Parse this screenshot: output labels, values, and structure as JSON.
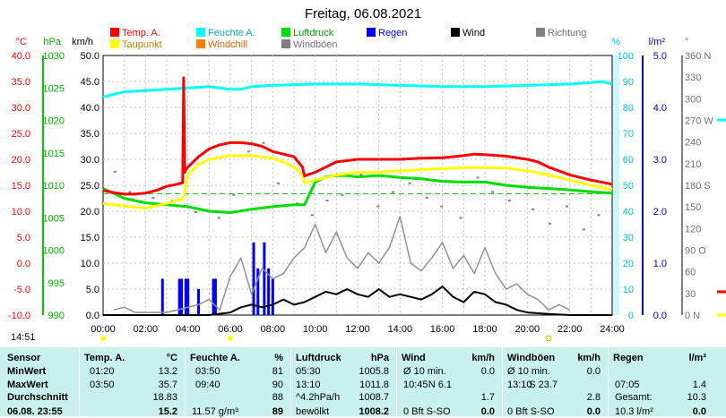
{
  "title": "Freitag, 06.08.2021",
  "axis_units": {
    "temp": "°C",
    "hpa": "hPa",
    "kmh": "km/h",
    "pct": "%",
    "rain": "l/m²",
    "dir": "°"
  },
  "legend": [
    {
      "label": "Temp. A.",
      "color": "#ff0000"
    },
    {
      "label": "Feuchte A.",
      "color": "#00ffff"
    },
    {
      "label": "Luftdruck",
      "color": "#00dd00"
    },
    {
      "label": "Regen",
      "color": "#0000ff"
    },
    {
      "label": "Wind",
      "color": "#000000"
    },
    {
      "label": "Richtung",
      "color": "#808080"
    },
    {
      "label": "Taupunkt",
      "color": "#ffff00"
    },
    {
      "label": "Windchill",
      "color": "#ff8000"
    },
    {
      "label": "Windböen",
      "color": "#808080"
    }
  ],
  "current_time": "14:51",
  "chart_data": {
    "type": "line",
    "x_ticks": [
      "00:00",
      "02:00",
      "04:00",
      "06:00",
      "08:00",
      "10:00",
      "12:00",
      "14:00",
      "16:00",
      "18:00",
      "20:00",
      "22:00",
      "24:00"
    ],
    "axes": {
      "temp": {
        "range": [
          -10,
          40
        ],
        "ticks": [
          "40.0",
          "35.0",
          "30.0",
          "25.0",
          "20.0",
          "15.0",
          "10.0",
          "5.0",
          "0.0",
          "-5.0",
          "-10.0"
        ]
      },
      "hpa": {
        "range": [
          990,
          1030
        ],
        "ticks": [
          "1030",
          "1025",
          "1020",
          "1015",
          "1010",
          "1005",
          "1000",
          "995",
          "990"
        ]
      },
      "kmh": {
        "range": [
          0,
          50
        ],
        "ticks": [
          "50.0",
          "45.0",
          "40.0",
          "35.0",
          "30.0",
          "25.0",
          "20.0",
          "15.0",
          "10.0",
          "5.0",
          "0.0"
        ]
      },
      "pct": {
        "range": [
          0,
          100
        ],
        "ticks": [
          "100",
          "90",
          "80",
          "70",
          "60",
          "50",
          "40",
          "30",
          "20",
          "10",
          "0"
        ]
      },
      "rain": {
        "range": [
          0,
          5
        ],
        "ticks": [
          "5.0",
          "4.0",
          "3.0",
          "2.0",
          "1.0",
          "0.0"
        ]
      },
      "dir": {
        "range": [
          0,
          360
        ],
        "ticks": [
          "360 N",
          "330",
          "300",
          "270 W",
          "240",
          "210",
          "180 S",
          "150",
          "120",
          "90 O",
          "60",
          "30",
          "0 N"
        ]
      }
    },
    "series": [
      {
        "name": "Temp. A.",
        "axis": "temp",
        "color": "#ff0000",
        "x": [
          0,
          0.5,
          1,
          1.5,
          2,
          2.5,
          3,
          3.5,
          3.75,
          3.8,
          3.85,
          3.9,
          4,
          4.5,
          5,
          5.5,
          6,
          6.5,
          7,
          7.5,
          8,
          8.5,
          9,
          9.4,
          9.5,
          10,
          10.5,
          11,
          12,
          13,
          14,
          15,
          16,
          17,
          17.5,
          18,
          19,
          20,
          20.5,
          21,
          22,
          23,
          24
        ],
        "y": [
          14,
          13.6,
          13.3,
          13.3,
          13.5,
          14,
          14.8,
          15.2,
          15.5,
          35.7,
          17.5,
          18,
          18.5,
          20.5,
          22,
          22.8,
          23.2,
          23.2,
          23,
          22.5,
          21.5,
          21,
          20.5,
          18.5,
          16.8,
          17.5,
          18.5,
          19.5,
          20,
          20,
          20,
          20.2,
          20.3,
          20.7,
          21,
          20.9,
          20.6,
          20,
          19.5,
          18.5,
          17,
          16,
          15.2
        ]
      },
      {
        "name": "Taupunkt",
        "axis": "temp",
        "color": "#ffff00",
        "x": [
          0,
          1,
          2,
          3,
          3.8,
          4,
          4.5,
          5,
          6,
          7,
          8,
          8.5,
          9,
          9.4,
          9.5,
          10,
          11,
          12,
          13,
          14,
          15,
          16,
          17,
          18,
          19,
          20,
          21,
          22,
          23,
          24
        ],
        "y": [
          11.5,
          11,
          10.6,
          11.5,
          12.5,
          17,
          19,
          20,
          20.7,
          20.7,
          20.2,
          19.5,
          18.5,
          17,
          15.5,
          16,
          17,
          17.5,
          17.5,
          17.8,
          18,
          18.2,
          18.4,
          18.4,
          18.3,
          17.8,
          17,
          16,
          15,
          14.2
        ]
      },
      {
        "name": "Feuchte A.",
        "axis": "pct",
        "color": "#00ffff",
        "x": [
          0,
          0.5,
          1,
          2,
          3,
          4,
          5,
          6,
          6.5,
          7,
          8,
          10,
          12,
          14,
          16,
          18,
          20,
          22,
          23,
          23.5,
          24
        ],
        "y": [
          84,
          85,
          86,
          86.5,
          87,
          87.5,
          88,
          87,
          87,
          88,
          88.5,
          89,
          89,
          88.5,
          88,
          88,
          88.5,
          89,
          89.5,
          90,
          89
        ]
      },
      {
        "name": "Luftdruck",
        "axis": "hpa",
        "color": "#00dd00",
        "x": [
          0,
          1,
          2,
          3,
          4,
          5,
          6,
          7,
          8,
          9,
          9.5,
          10,
          10.5,
          11,
          11.5,
          12,
          13,
          14,
          15,
          16,
          17,
          18,
          19,
          20,
          21,
          22,
          23,
          24
        ],
        "y": [
          1009.5,
          1008,
          1007.3,
          1007,
          1006.7,
          1006,
          1005.8,
          1006.3,
          1006.7,
          1007,
          1007,
          1010.5,
          1011.3,
          1011.5,
          1011.5,
          1011.3,
          1011.5,
          1011.2,
          1011,
          1010.6,
          1010.5,
          1010.5,
          1010,
          1009.7,
          1009.5,
          1009.3,
          1009,
          1008.8
        ]
      },
      {
        "name": "Wind",
        "axis": "kmh",
        "color": "#000000",
        "x": [
          0,
          3,
          4,
          5,
          6,
          6.5,
          7,
          7.5,
          8,
          8.5,
          9,
          9.5,
          10,
          10.5,
          11,
          11.5,
          12,
          12.5,
          13,
          13.5,
          14,
          14.5,
          15,
          15.5,
          16,
          16.5,
          17,
          17.5,
          18,
          18.5,
          19,
          19.5,
          20,
          21,
          22,
          23,
          24
        ],
        "y": [
          0,
          0,
          0,
          0,
          0.5,
          1.5,
          2,
          1.5,
          2,
          3,
          2,
          2.5,
          3.5,
          4.5,
          4,
          5,
          4,
          3.5,
          5,
          3.5,
          4,
          3.5,
          3,
          4,
          5.5,
          3.5,
          2.5,
          4.5,
          4,
          2.5,
          2,
          1,
          0.5,
          0.2,
          0,
          0,
          0
        ]
      },
      {
        "name": "Windböen",
        "axis": "kmh",
        "color": "#909090",
        "x": [
          0.5,
          1,
          1.5,
          2.5,
          3,
          4.5,
          5,
          5.5,
          6,
          6.5,
          7,
          7.5,
          8,
          8.5,
          9,
          9.5,
          10,
          10.5,
          11,
          11.5,
          12,
          12.5,
          13,
          13.5,
          14,
          14.5,
          15,
          15.5,
          16,
          16.5,
          17,
          17.5,
          18,
          18.5,
          19,
          19.5,
          20,
          20.5,
          21,
          21.5,
          22
        ],
        "y": [
          1,
          1.5,
          0.5,
          0.5,
          0.5,
          2,
          3,
          1,
          7.5,
          11,
          4,
          9,
          7,
          8,
          11,
          13,
          17.5,
          12,
          16,
          11,
          9,
          12,
          10,
          13,
          19,
          10,
          8.5,
          11,
          14,
          9,
          11.5,
          8,
          13,
          8,
          5,
          6,
          4,
          3,
          1,
          2,
          1
        ]
      },
      {
        "name": "Regen",
        "axis": "rain",
        "color": "#0000ff",
        "x": [
          2.8,
          3.6,
          3.7,
          3.9,
          4.0,
          4.5,
          5.2,
          5.3,
          7.1,
          7.3,
          7.6,
          7.8,
          8.0
        ],
        "y": [
          0.7,
          0.7,
          0.7,
          0.7,
          0.7,
          0.5,
          0.7,
          0.7,
          1.4,
          0.9,
          1.4,
          0.9,
          0.7
        ]
      }
    ]
  },
  "stats": {
    "sensor": {
      "title": "Sensor",
      "rows": [
        "MinWert",
        "MaxWert",
        "Durchschnitt",
        "06.08. 23:55"
      ]
    },
    "temp": {
      "title": "Temp. A.",
      "unit": "°C",
      "times": [
        "01:20",
        "03:50"
      ],
      "values": [
        "13.2",
        "35.7",
        "18.83",
        "15.2"
      ]
    },
    "feuchte": {
      "title": "Feuchte A.",
      "unit": "%",
      "times": [
        "03:50",
        "09:40"
      ],
      "extra": "11.57 g/m³",
      "values": [
        "81",
        "90",
        "88",
        "89"
      ]
    },
    "druck": {
      "title": "Luftdruck",
      "unit": "hPa",
      "times": [
        "05:30",
        "13:10",
        "^4.2hPa/h",
        "bewölkt"
      ],
      "values": [
        "1005.8",
        "1011.8",
        "1008.7",
        "1008.2"
      ]
    },
    "wind": {
      "title": "Wind",
      "unit": "km/h",
      "labels": [
        "Ø 10 min.",
        "10:45",
        "",
        "0 Bft S-SO"
      ],
      "dir": "N 6.1",
      "values": [
        "0.0",
        "",
        "1.7",
        "0.0"
      ]
    },
    "boeen": {
      "title": "Windböen",
      "unit": "km/h",
      "labels": [
        "Ø 10 min.",
        "13:10",
        "",
        "0 Bft S-SO"
      ],
      "dir": "S 23.7",
      "values": [
        "0.0",
        "",
        "2.8",
        "0.0"
      ]
    },
    "regen": {
      "title": "Regen",
      "unit": "l/m²",
      "labels": [
        "",
        "07:05",
        "Gesamt:",
        "10.3 l/m²"
      ],
      "values": [
        "",
        "1.4",
        "10.3",
        "0.0"
      ]
    }
  }
}
